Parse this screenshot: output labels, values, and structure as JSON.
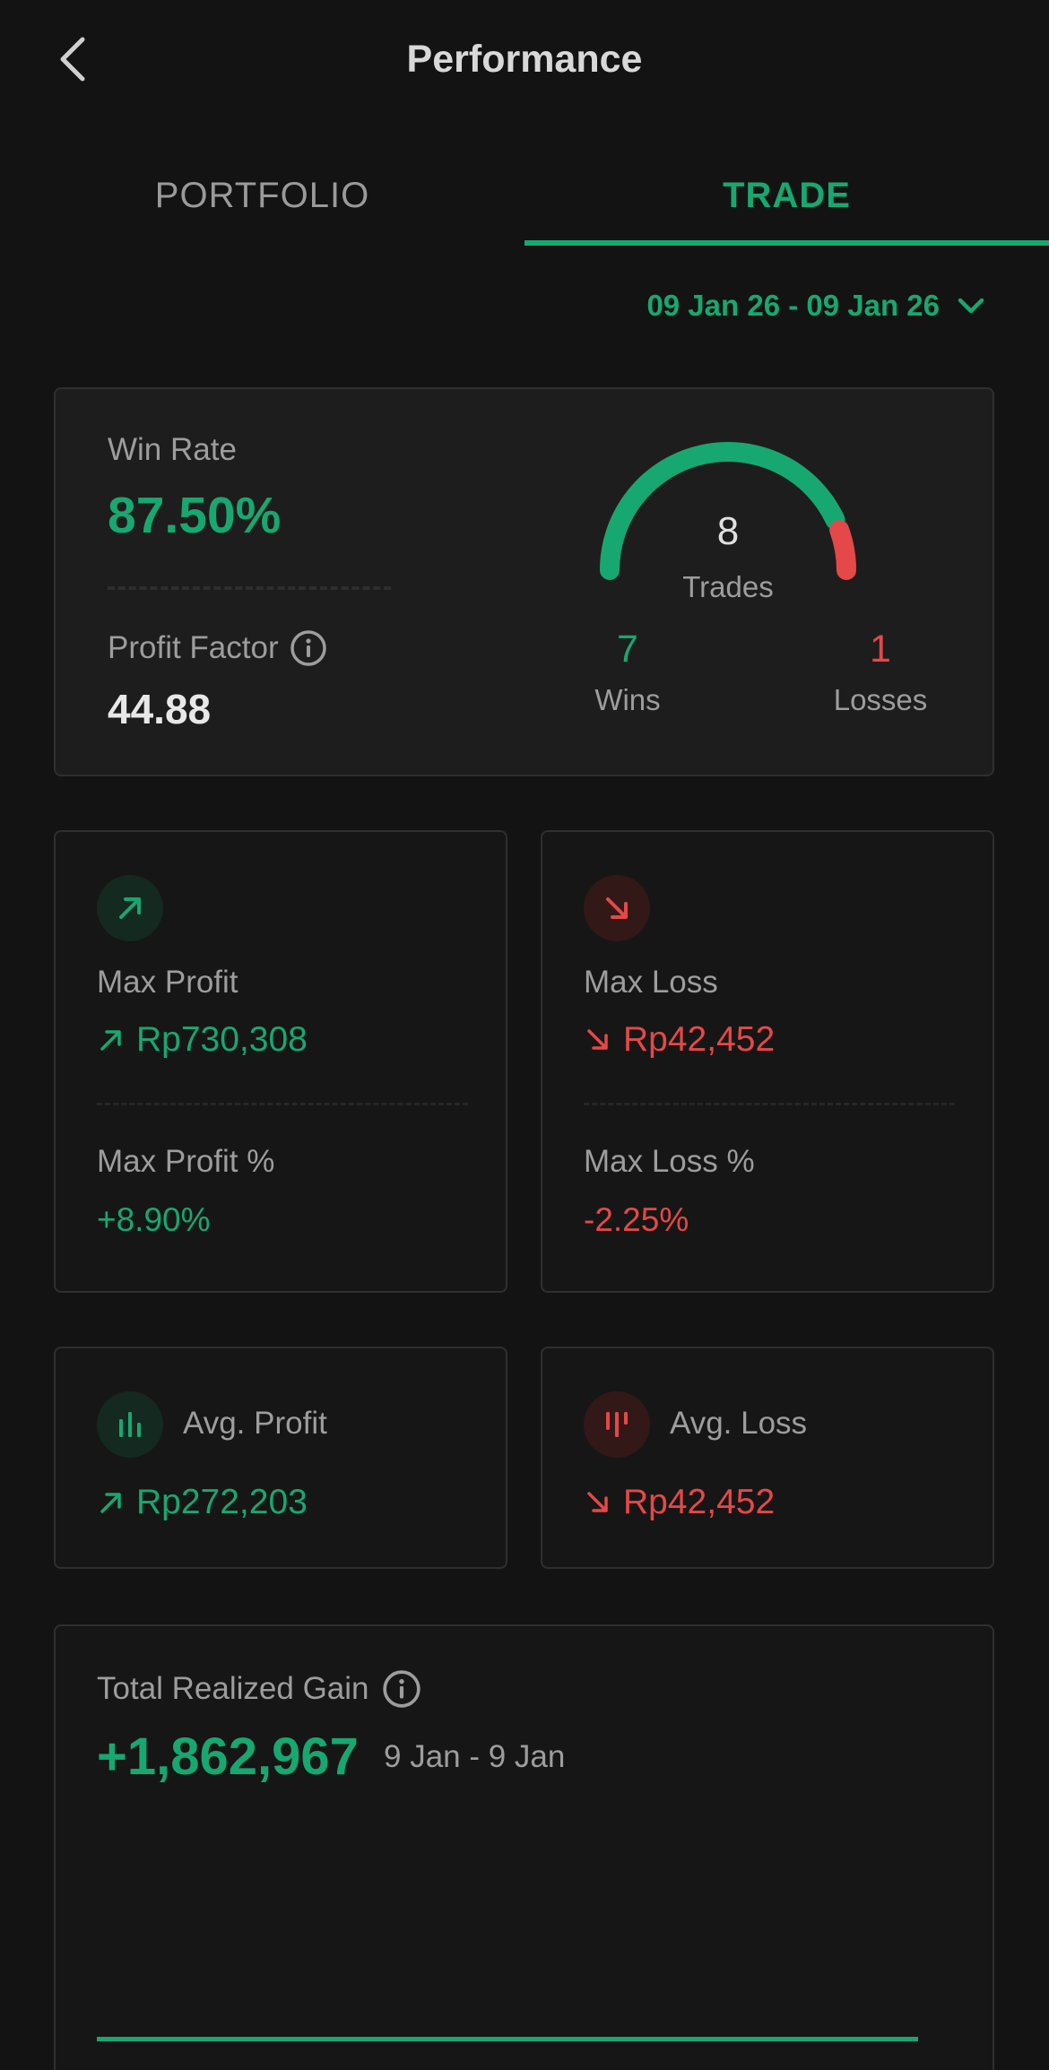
{
  "header": {
    "title": "Performance",
    "back_icon": "chevron-left-icon"
  },
  "tabs": [
    {
      "label": "PORTFOLIO",
      "active": false
    },
    {
      "label": "TRADE",
      "active": true
    }
  ],
  "date_filter": {
    "label": "09 Jan 26 - 09 Jan 26",
    "icon": "chevron-down-icon"
  },
  "summary": {
    "win_rate_label": "Win Rate",
    "win_rate_value": "87.50%",
    "profit_factor_label": "Profit Factor",
    "profit_factor_value": "44.88",
    "trades_count": "8",
    "trades_label": "Trades",
    "wins_count": "7",
    "wins_label": "Wins",
    "losses_count": "1",
    "losses_label": "Losses",
    "gauge_win_fraction": 0.875
  },
  "max_profit": {
    "label": "Max Profit",
    "value": "Rp730,308",
    "pct_label": "Max Profit %",
    "pct_value": "+8.90%"
  },
  "max_loss": {
    "label": "Max Loss",
    "value": "Rp42,452",
    "pct_label": "Max Loss %",
    "pct_value": "-2.25%"
  },
  "avg_profit": {
    "label": "Avg. Profit",
    "value": "Rp272,203"
  },
  "avg_loss": {
    "label": "Avg. Loss",
    "value": "Rp42,452"
  },
  "total_realized_gain": {
    "label": "Total Realized Gain",
    "value": "+1,862,967",
    "range": "9 Jan - 9 Jan"
  },
  "colors": {
    "accent_green": "#17a871",
    "loss_red": "#e54848",
    "background": "#131313"
  }
}
